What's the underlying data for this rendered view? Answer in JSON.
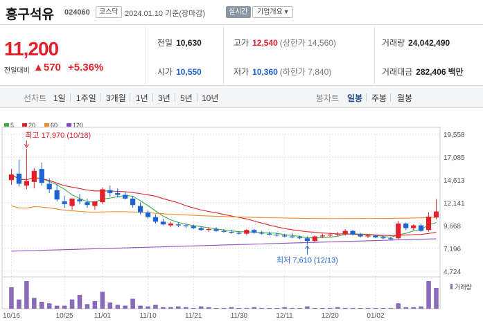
{
  "header": {
    "name": "흥구석유",
    "code": "024060",
    "market": "코스닥",
    "date": "2024.01.10 기준(장마감)",
    "realtime": "실시간",
    "overview": "기업개요 ▾"
  },
  "price": {
    "current": "11,200",
    "change_label": "전일대비",
    "change_value": "▲570",
    "change_pct": "+5.36%"
  },
  "stats": {
    "prev_label": "전일",
    "prev": "10,630",
    "high_label": "고가",
    "high": "12,540",
    "high_sub": "(상한가 14,560)",
    "volume_label": "거래량",
    "volume": "24,042,490",
    "open_label": "시가",
    "open": "10,550",
    "low_label": "저가",
    "low": "10,360",
    "low_sub": "(하한가 7,840)",
    "amount_label": "거래대금",
    "amount": "282,406",
    "amount_unit": "백만"
  },
  "tabs": {
    "line_label": "선차트",
    "line_items": [
      "1일",
      "1주일",
      "3개월",
      "1년",
      "3년",
      "5년",
      "10년"
    ],
    "candle_label": "봉차트",
    "candle_items": [
      "일봉",
      "주봉",
      "월봉"
    ],
    "active_candle": "일봉"
  },
  "colors": {
    "up": "#e0202b",
    "down": "#1f62d1",
    "ma5": "#3fae49",
    "ma20": "#e0202b",
    "ma60": "#f08a24",
    "ma120": "#8a4fb8",
    "volume": "#8a6bb8"
  },
  "chart_data": {
    "type": "candlestick",
    "legend": [
      {
        "name": "5",
        "color": "#3fae49"
      },
      {
        "name": "20",
        "color": "#e0202b"
      },
      {
        "name": "60",
        "color": "#f08a24"
      },
      {
        "name": "120",
        "color": "#8a4fb8"
      }
    ],
    "y_ticks": [
      "19,558",
      "17,085",
      "14,613",
      "12,141",
      "9,668",
      "7,196",
      "4,724"
    ],
    "ylim": [
      4724,
      19558
    ],
    "x_ticks": [
      "10/16",
      "10/25",
      "11/01",
      "11/10",
      "11/21",
      "11/30",
      "12/11",
      "12/20",
      "01/02"
    ],
    "x_tick_index": [
      0,
      7,
      12,
      18,
      24,
      30,
      36,
      42,
      48
    ],
    "annotations": {
      "high": "최고 17,970 (10/18)",
      "low": "최저 7,610 (12/13)"
    },
    "volume_label": "거래량",
    "candles": [
      [
        14600,
        15800,
        14100,
        15200
      ],
      [
        15300,
        16800,
        13900,
        14200
      ],
      [
        14000,
        17970,
        13600,
        14500
      ],
      [
        14400,
        15900,
        13700,
        15600
      ],
      [
        15800,
        16500,
        14000,
        14300
      ],
      [
        14200,
        14800,
        13200,
        13600
      ],
      [
        13500,
        14200,
        12300,
        12500
      ],
      [
        12300,
        12900,
        11600,
        12000
      ],
      [
        11800,
        12600,
        11400,
        12600
      ],
      [
        12500,
        13100,
        12000,
        12300
      ],
      [
        12200,
        12600,
        11600,
        11900
      ],
      [
        11800,
        12300,
        11400,
        12300
      ],
      [
        12200,
        13800,
        12000,
        13600
      ],
      [
        13500,
        14000,
        12800,
        13200
      ],
      [
        13200,
        13700,
        12700,
        13000
      ],
      [
        13000,
        13400,
        12500,
        12600
      ],
      [
        12600,
        12900,
        11600,
        11900
      ],
      [
        11800,
        12200,
        10900,
        11100
      ],
      [
        11100,
        11300,
        10400,
        10600
      ],
      [
        10600,
        10900,
        9900,
        10100
      ],
      [
        10100,
        10400,
        9700,
        9800
      ],
      [
        9700,
        10100,
        9500,
        9900
      ],
      [
        9800,
        10000,
        9500,
        9700
      ],
      [
        9700,
        9900,
        9400,
        9600
      ],
      [
        9600,
        9800,
        9300,
        9400
      ],
      [
        9400,
        9600,
        9100,
        9200
      ],
      [
        9200,
        9500,
        9000,
        9300
      ],
      [
        9300,
        9500,
        9000,
        9100
      ],
      [
        9100,
        9300,
        8900,
        9000
      ],
      [
        9000,
        9200,
        8800,
        8900
      ],
      [
        8900,
        9100,
        8700,
        8800
      ],
      [
        8800,
        9300,
        8600,
        9200
      ],
      [
        9200,
        9300,
        8800,
        8900
      ],
      [
        8900,
        9100,
        8700,
        8800
      ],
      [
        8800,
        9000,
        8600,
        8700
      ],
      [
        8700,
        8900,
        8500,
        8600
      ],
      [
        8600,
        8800,
        8400,
        8500
      ],
      [
        8500,
        8900,
        8300,
        8400
      ],
      [
        8400,
        8600,
        8200,
        8300
      ],
      [
        8300,
        8500,
        7610,
        8000
      ],
      [
        8000,
        8600,
        7900,
        8500
      ],
      [
        8500,
        8800,
        8300,
        8600
      ],
      [
        8600,
        8900,
        8400,
        8700
      ],
      [
        8700,
        9000,
        8500,
        8800
      ],
      [
        8800,
        9300,
        8600,
        9100
      ],
      [
        9100,
        9200,
        8600,
        8700
      ],
      [
        8700,
        8900,
        8400,
        8500
      ],
      [
        8500,
        8700,
        8300,
        8600
      ],
      [
        8600,
        8700,
        8300,
        8400
      ],
      [
        8400,
        8600,
        8200,
        8300
      ],
      [
        8300,
        8500,
        8100,
        8200
      ],
      [
        8300,
        10200,
        8200,
        9900
      ],
      [
        9900,
        10000,
        9200,
        9400
      ],
      [
        9400,
        9800,
        9200,
        9700
      ],
      [
        9700,
        9900,
        9000,
        9100
      ],
      [
        9200,
        11100,
        9000,
        10630
      ],
      [
        10550,
        12540,
        10360,
        11200
      ]
    ],
    "volumes": [
      28,
      12,
      36,
      14,
      9,
      7,
      4,
      4,
      12,
      18,
      6,
      10,
      22,
      8,
      5,
      4,
      13,
      4,
      3,
      5,
      2,
      2,
      3,
      2,
      1,
      3,
      2,
      1,
      1,
      2,
      1,
      1,
      2,
      1,
      1,
      1,
      2,
      1,
      1,
      3,
      1,
      1,
      1,
      2,
      1,
      1,
      1,
      1,
      1,
      1,
      1,
      7,
      2,
      2,
      3,
      36,
      27
    ]
  }
}
